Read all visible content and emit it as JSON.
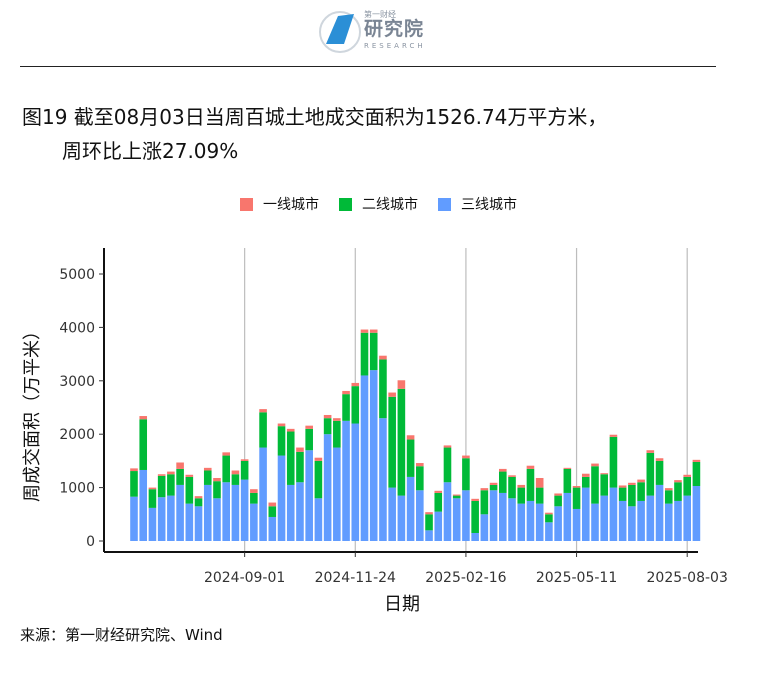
{
  "header": {
    "logo_small": "第一财经",
    "logo_main": "研究院",
    "logo_sub": "RESEARCH"
  },
  "title": {
    "line1": "图19 截至08月03日当周百城土地成交面积为1526.74万平方米，",
    "line2": "周环比上涨27.09%"
  },
  "source": "来源：第一财经研究院、Wind",
  "colors": {
    "tier1": "#F8766D",
    "tier2": "#00BA38",
    "tier3": "#619CFF"
  },
  "chart_data": {
    "type": "bar",
    "stacked": true,
    "xlabel": "日期",
    "ylabel": "周成交面积（万平米）",
    "ylim": [
      0,
      5250
    ],
    "yticks": [
      0,
      1000,
      2000,
      3000,
      4000,
      5000
    ],
    "xtick_labels": [
      "2024-09-01",
      "2024-11-24",
      "2025-02-16",
      "2025-05-11",
      "2025-08-03"
    ],
    "xtick_indices": [
      12,
      24,
      36,
      48,
      60
    ],
    "legend_position": "top",
    "grid": "vertical major lines only",
    "series": [
      {
        "name": "一线城市",
        "values": [
          50,
          60,
          30,
          30,
          50,
          120,
          40,
          40,
          50,
          60,
          60,
          70,
          30,
          70,
          60,
          70,
          50,
          50,
          80,
          60,
          60,
          60,
          50,
          60,
          60,
          60,
          60,
          70,
          80,
          160,
          80,
          60,
          40,
          40,
          40,
          20,
          50,
          40,
          40,
          40,
          50,
          30,
          50,
          60,
          180,
          30,
          40,
          20,
          30,
          60,
          50,
          20,
          40,
          40,
          40,
          50,
          50,
          50,
          40,
          40,
          40,
          40
        ]
      },
      {
        "name": "二线城市",
        "values": [
          480,
          950,
          350,
          400,
          400,
          300,
          500,
          150,
          270,
          320,
          500,
          200,
          350,
          200,
          660,
          200,
          550,
          1000,
          570,
          400,
          700,
          300,
          500,
          500,
          700,
          800,
          700,
          1100,
          1700,
          2000,
          700,
          450,
          300,
          350,
          650,
          50,
          600,
          600,
          450,
          100,
          400,
          400,
          300,
          600,
          300,
          150,
          200,
          450,
          400,
          200,
          700,
          400,
          950,
          250,
          400,
          350,
          800,
          450,
          250,
          350,
          350,
          450
        ]
      },
      {
        "name": "三线城市",
        "values": [
          830,
          1330,
          620,
          820,
          850,
          1050,
          700,
          650,
          1050,
          800,
          1100,
          1050,
          1150,
          700,
          1750,
          450,
          1600,
          1050,
          1100,
          1700,
          800,
          2000,
          1750,
          2250,
          2200,
          3100,
          3200,
          2300,
          1000,
          850,
          1200,
          950,
          200,
          550,
          1100,
          800,
          950,
          150,
          500,
          950,
          900,
          800,
          700,
          750,
          700,
          350,
          650,
          900,
          600,
          1000,
          700,
          850,
          1000,
          750,
          650,
          750,
          850,
          1050,
          700,
          750,
          850,
          1030
        ]
      }
    ]
  }
}
